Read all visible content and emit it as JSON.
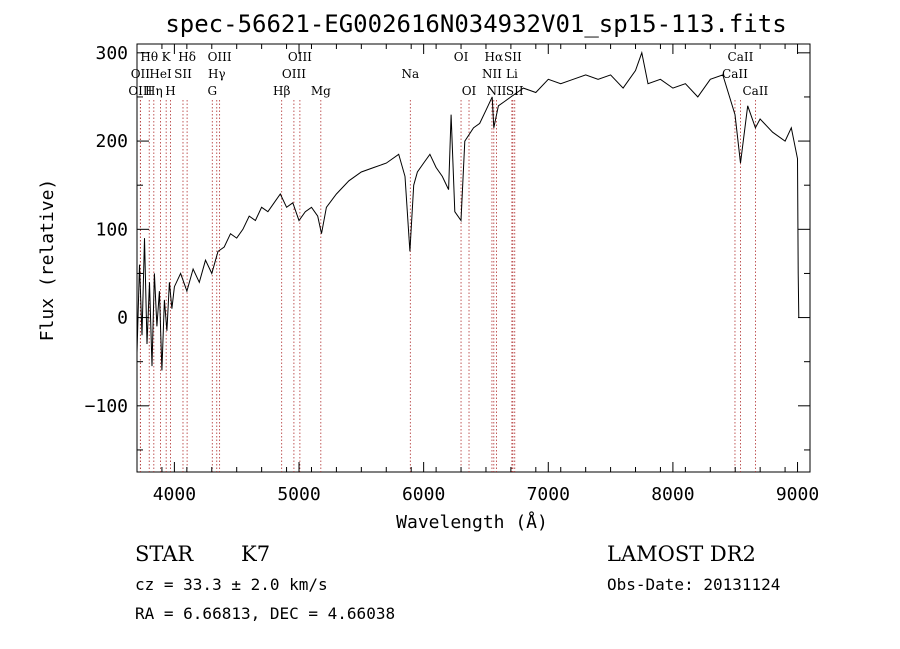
{
  "chart_data": {
    "type": "line",
    "title": "spec-56621-EG002616N034932V01_sp15-113.fits",
    "xlabel": "Wavelength (Å)",
    "ylabel": "Flux (relative)",
    "xlim": [
      3700,
      9100
    ],
    "ylim": [
      -175,
      310
    ],
    "x_ticks": [
      4000,
      5000,
      6000,
      7000,
      8000,
      9000
    ],
    "y_ticks": [
      -100,
      0,
      100,
      200,
      300
    ],
    "series": [
      {
        "points": [
          [
            3700,
            -40
          ],
          [
            3720,
            60
          ],
          [
            3740,
            -20
          ],
          [
            3760,
            90
          ],
          [
            3780,
            -30
          ],
          [
            3800,
            40
          ],
          [
            3820,
            -55
          ],
          [
            3840,
            50
          ],
          [
            3860,
            -10
          ],
          [
            3880,
            30
          ],
          [
            3900,
            -60
          ],
          [
            3920,
            20
          ],
          [
            3940,
            -15
          ],
          [
            3960,
            40
          ],
          [
            3980,
            10
          ],
          [
            4000,
            35
          ],
          [
            4050,
            50
          ],
          [
            4100,
            30
          ],
          [
            4150,
            55
          ],
          [
            4200,
            40
          ],
          [
            4250,
            65
          ],
          [
            4300,
            50
          ],
          [
            4350,
            75
          ],
          [
            4400,
            80
          ],
          [
            4450,
            95
          ],
          [
            4500,
            90
          ],
          [
            4550,
            100
          ],
          [
            4600,
            115
          ],
          [
            4650,
            110
          ],
          [
            4700,
            125
          ],
          [
            4750,
            120
          ],
          [
            4800,
            130
          ],
          [
            4850,
            140
          ],
          [
            4900,
            125
          ],
          [
            4950,
            130
          ],
          [
            5000,
            110
          ],
          [
            5050,
            120
          ],
          [
            5100,
            125
          ],
          [
            5150,
            115
          ],
          [
            5180,
            95
          ],
          [
            5220,
            125
          ],
          [
            5300,
            140
          ],
          [
            5400,
            155
          ],
          [
            5500,
            165
          ],
          [
            5600,
            170
          ],
          [
            5700,
            175
          ],
          [
            5800,
            185
          ],
          [
            5850,
            160
          ],
          [
            5890,
            75
          ],
          [
            5920,
            150
          ],
          [
            5950,
            165
          ],
          [
            6000,
            175
          ],
          [
            6050,
            185
          ],
          [
            6100,
            170
          ],
          [
            6150,
            160
          ],
          [
            6200,
            145
          ],
          [
            6220,
            230
          ],
          [
            6250,
            120
          ],
          [
            6300,
            110
          ],
          [
            6330,
            200
          ],
          [
            6400,
            215
          ],
          [
            6450,
            220
          ],
          [
            6500,
            235
          ],
          [
            6550,
            250
          ],
          [
            6563,
            215
          ],
          [
            6600,
            240
          ],
          [
            6650,
            245
          ],
          [
            6700,
            250
          ],
          [
            6750,
            255
          ],
          [
            6800,
            260
          ],
          [
            6900,
            255
          ],
          [
            7000,
            270
          ],
          [
            7100,
            265
          ],
          [
            7200,
            270
          ],
          [
            7300,
            275
          ],
          [
            7400,
            270
          ],
          [
            7500,
            275
          ],
          [
            7600,
            260
          ],
          [
            7700,
            280
          ],
          [
            7750,
            300
          ],
          [
            7800,
            265
          ],
          [
            7900,
            270
          ],
          [
            8000,
            260
          ],
          [
            8100,
            265
          ],
          [
            8200,
            250
          ],
          [
            8300,
            270
          ],
          [
            8400,
            275
          ],
          [
            8498,
            230
          ],
          [
            8542,
            175
          ],
          [
            8600,
            240
          ],
          [
            8662,
            215
          ],
          [
            8700,
            225
          ],
          [
            8800,
            210
          ],
          [
            8900,
            200
          ],
          [
            8950,
            215
          ],
          [
            9000,
            180
          ],
          [
            9005,
            50
          ],
          [
            9010,
            0
          ]
        ]
      }
    ],
    "spectral_lines": [
      {
        "label": "Hθ",
        "x": 3798,
        "row": 1
      },
      {
        "label": "OII",
        "x": 3727,
        "row": 2
      },
      {
        "label": "OIII",
        "x": 3727,
        "row": 3
      },
      {
        "label": "K",
        "x": 3934,
        "row": 1
      },
      {
        "label": "HeI",
        "x": 3889,
        "row": 2
      },
      {
        "label": "Hη",
        "x": 3835,
        "row": 3
      },
      {
        "label": "SII",
        "x": 4069,
        "row": 2
      },
      {
        "label": "H",
        "x": 3969,
        "row": 3
      },
      {
        "label": "Hδ",
        "x": 4102,
        "row": 1
      },
      {
        "label": "OIII",
        "x": 4363,
        "row": 1
      },
      {
        "label": "Hγ",
        "x": 4340,
        "row": 2
      },
      {
        "label": "G",
        "x": 4304,
        "row": 3
      },
      {
        "label": "Hβ",
        "x": 4861,
        "row": 3
      },
      {
        "label": "OIII",
        "x": 5007,
        "row": 1
      },
      {
        "label": "OIII",
        "x": 4959,
        "row": 2
      },
      {
        "label": "Mg",
        "x": 5175,
        "row": 3
      },
      {
        "label": "Na",
        "x": 5893,
        "row": 2
      },
      {
        "label": "OI",
        "x": 6300,
        "row": 1
      },
      {
        "label": "OI",
        "x": 6364,
        "row": 3
      },
      {
        "label": "Hα",
        "x": 6563,
        "row": 1
      },
      {
        "label": "SII",
        "x": 6716,
        "row": 1
      },
      {
        "label": "NII",
        "x": 6548,
        "row": 2
      },
      {
        "label": "Li",
        "x": 6708,
        "row": 2
      },
      {
        "label": "NII",
        "x": 6584,
        "row": 3
      },
      {
        "label": "SII",
        "x": 6731,
        "row": 3
      },
      {
        "label": "CaII",
        "x": 8542,
        "row": 1
      },
      {
        "label": "CaII",
        "x": 8498,
        "row": 2
      },
      {
        "label": "CaII",
        "x": 8662,
        "row": 3
      }
    ]
  },
  "info": {
    "class": "STAR",
    "subclass": "K7",
    "survey": "LAMOST DR2",
    "cz": "cz = 33.3 ± 2.0 km/s",
    "obs_date": "Obs-Date: 20131124",
    "coords": "RA =   6.66813, DEC =   4.66038"
  }
}
